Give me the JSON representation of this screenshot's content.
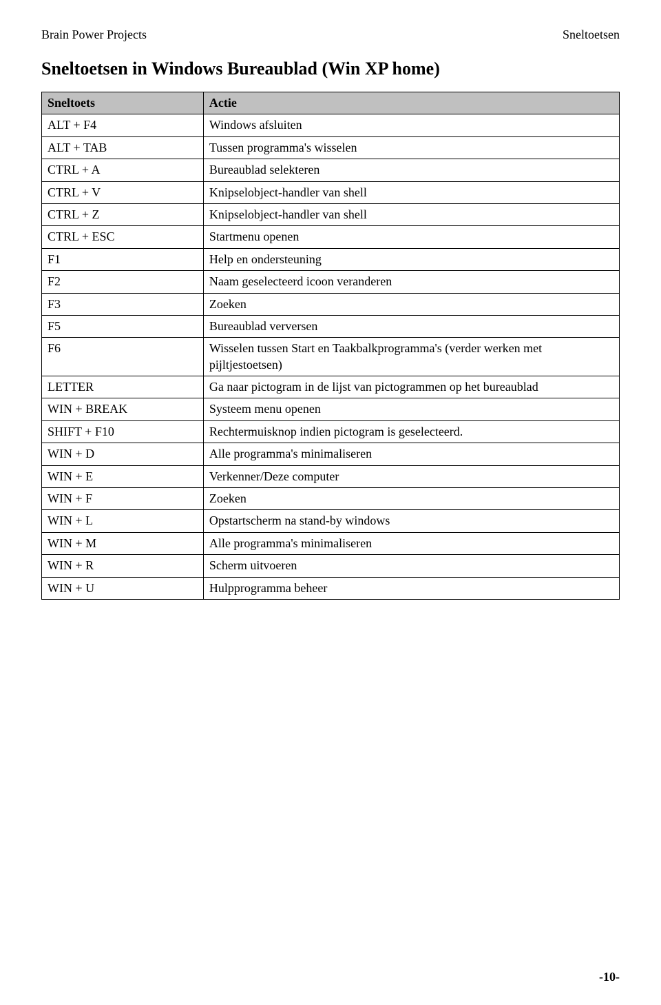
{
  "header": {
    "left": "Brain Power Projects",
    "right": "Sneltoetsen"
  },
  "title": "Sneltoetsen in Windows Bureaublad (Win XP home)",
  "table": {
    "headers": {
      "col1": "Sneltoets",
      "col2": "Actie"
    },
    "header_bg": "#c0c0c0",
    "border_color": "#000000",
    "rows": [
      {
        "key": "ALT + F4",
        "action": "Windows afsluiten"
      },
      {
        "key": "ALT + TAB",
        "action": "Tussen programma's wisselen"
      },
      {
        "key": "CTRL + A",
        "action": "Bureaublad selekteren"
      },
      {
        "key": "CTRL + V",
        "action": "Knipselobject-handler van shell"
      },
      {
        "key": "CTRL + Z",
        "action": "Knipselobject-handler van shell"
      },
      {
        "key": "CTRL + ESC",
        "action": "Startmenu openen"
      },
      {
        "key": "F1",
        "action": "Help en ondersteuning"
      },
      {
        "key": "F2",
        "action": "Naam geselecteerd icoon veranderen"
      },
      {
        "key": "F3",
        "action": "Zoeken"
      },
      {
        "key": "F5",
        "action": "Bureaublad verversen"
      },
      {
        "key": "F6",
        "action": "Wisselen tussen Start en Taakbalkprogramma's (verder werken met pijltjestoetsen)"
      },
      {
        "key": "LETTER",
        "action": "Ga naar pictogram in de lijst van pictogrammen op het bureaublad"
      },
      {
        "key": "WIN + BREAK",
        "action": "Systeem menu openen"
      },
      {
        "key": "SHIFT + F10",
        "action": "Rechtermuisknop indien pictogram is geselecteerd."
      },
      {
        "key": "WIN + D",
        "action": "Alle programma's minimaliseren"
      },
      {
        "key": "WIN + E",
        "action": "Verkenner/Deze computer"
      },
      {
        "key": "WIN + F",
        "action": "Zoeken"
      },
      {
        "key": "WIN + L",
        "action": "Opstartscherm na stand-by windows"
      },
      {
        "key": "WIN + M",
        "action": "Alle programma's minimaliseren"
      },
      {
        "key": "WIN + R",
        "action": "Scherm uitvoeren"
      },
      {
        "key": "WIN + U",
        "action": "Hulpprogramma beheer"
      }
    ]
  },
  "footer": {
    "pagenum": "-10-"
  }
}
